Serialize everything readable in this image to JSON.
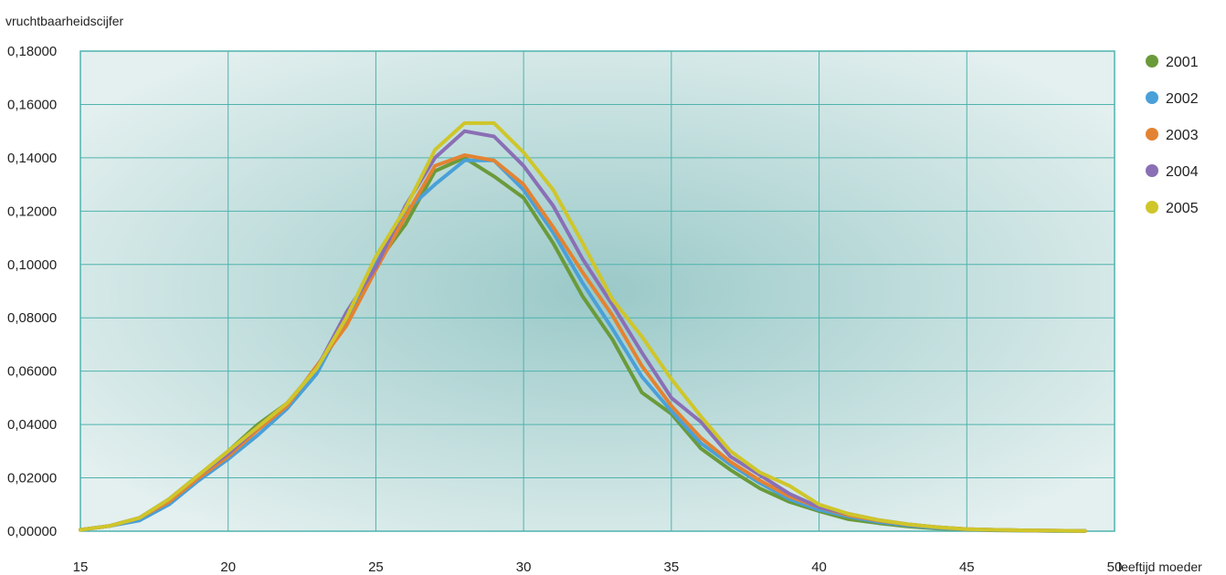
{
  "chart_data": {
    "type": "line",
    "title": "",
    "ylabel": "vruchtbaarheidscijfer",
    "xlabel": "leeftijd moeder",
    "x": [
      15,
      16,
      17,
      18,
      19,
      20,
      21,
      22,
      23,
      24,
      25,
      26,
      27,
      28,
      29,
      30,
      31,
      32,
      33,
      34,
      35,
      36,
      37,
      38,
      39,
      40,
      41,
      42,
      43,
      44,
      45,
      46,
      47,
      48,
      49
    ],
    "xlim": [
      15,
      50
    ],
    "ylim": [
      0,
      0.18
    ],
    "x_ticks": [
      "15",
      "20",
      "25",
      "30",
      "35",
      "40",
      "45",
      "50"
    ],
    "x_tick_values": [
      15,
      20,
      25,
      30,
      35,
      40,
      45,
      50
    ],
    "y_ticks": [
      "0,00000",
      "0,02000",
      "0,04000",
      "0,06000",
      "0,08000",
      "0,10000",
      "0,12000",
      "0,14000",
      "0,16000",
      "0,18000"
    ],
    "y_tick_values": [
      0,
      0.02,
      0.04,
      0.06,
      0.08,
      0.1,
      0.12,
      0.14,
      0.16,
      0.18
    ],
    "grid": true,
    "legend_position": "right",
    "colors": {
      "plot_bg_light": "#e3f0ef",
      "plot_bg_dark": "#9ac9c8",
      "grid": "#4fb3ad",
      "frame": "#4fb3ad"
    },
    "series": [
      {
        "name": "2001",
        "color": "#6b9a3a",
        "values": [
          0.0005,
          0.002,
          0.005,
          0.012,
          0.021,
          0.03,
          0.04,
          0.048,
          0.061,
          0.078,
          0.1,
          0.115,
          0.135,
          0.14,
          0.133,
          0.125,
          0.108,
          0.088,
          0.072,
          0.052,
          0.044,
          0.031,
          0.023,
          0.016,
          0.011,
          0.0075,
          0.0045,
          0.003,
          0.0018,
          0.001,
          0.0006,
          0.0003,
          0.0002,
          0.0001,
          0.0001
        ]
      },
      {
        "name": "2002",
        "color": "#4aa0d8",
        "values": [
          0.0005,
          0.002,
          0.004,
          0.01,
          0.019,
          0.027,
          0.036,
          0.046,
          0.059,
          0.08,
          0.1,
          0.12,
          0.13,
          0.139,
          0.139,
          0.128,
          0.112,
          0.093,
          0.076,
          0.058,
          0.045,
          0.033,
          0.025,
          0.018,
          0.012,
          0.008,
          0.0055,
          0.0035,
          0.0022,
          0.0012,
          0.0007,
          0.0004,
          0.0002,
          0.0001,
          0.0001
        ]
      },
      {
        "name": "2003",
        "color": "#e38332",
        "values": [
          0.0005,
          0.002,
          0.005,
          0.011,
          0.02,
          0.028,
          0.038,
          0.047,
          0.062,
          0.077,
          0.098,
          0.118,
          0.137,
          0.141,
          0.139,
          0.13,
          0.114,
          0.097,
          0.081,
          0.062,
          0.047,
          0.035,
          0.026,
          0.019,
          0.013,
          0.009,
          0.006,
          0.004,
          0.0025,
          0.0015,
          0.0008,
          0.0005,
          0.0003,
          0.0002,
          0.0001
        ]
      },
      {
        "name": "2004",
        "color": "#8a6fb5",
        "values": [
          0.0005,
          0.002,
          0.005,
          0.012,
          0.021,
          0.029,
          0.039,
          0.048,
          0.061,
          0.082,
          0.099,
          0.122,
          0.14,
          0.15,
          0.148,
          0.137,
          0.122,
          0.102,
          0.085,
          0.067,
          0.05,
          0.041,
          0.028,
          0.021,
          0.014,
          0.009,
          0.0065,
          0.0042,
          0.0026,
          0.0015,
          0.0008,
          0.0005,
          0.0003,
          0.0002,
          0.0001
        ]
      },
      {
        "name": "2005",
        "color": "#cfc62a",
        "values": [
          0.0005,
          0.002,
          0.005,
          0.012,
          0.021,
          0.03,
          0.039,
          0.048,
          0.061,
          0.08,
          0.103,
          0.121,
          0.143,
          0.153,
          0.153,
          0.142,
          0.128,
          0.108,
          0.087,
          0.073,
          0.057,
          0.043,
          0.03,
          0.022,
          0.017,
          0.01,
          0.0065,
          0.0042,
          0.0026,
          0.0015,
          0.0008,
          0.0005,
          0.0003,
          0.0002,
          0.0001
        ]
      }
    ]
  }
}
